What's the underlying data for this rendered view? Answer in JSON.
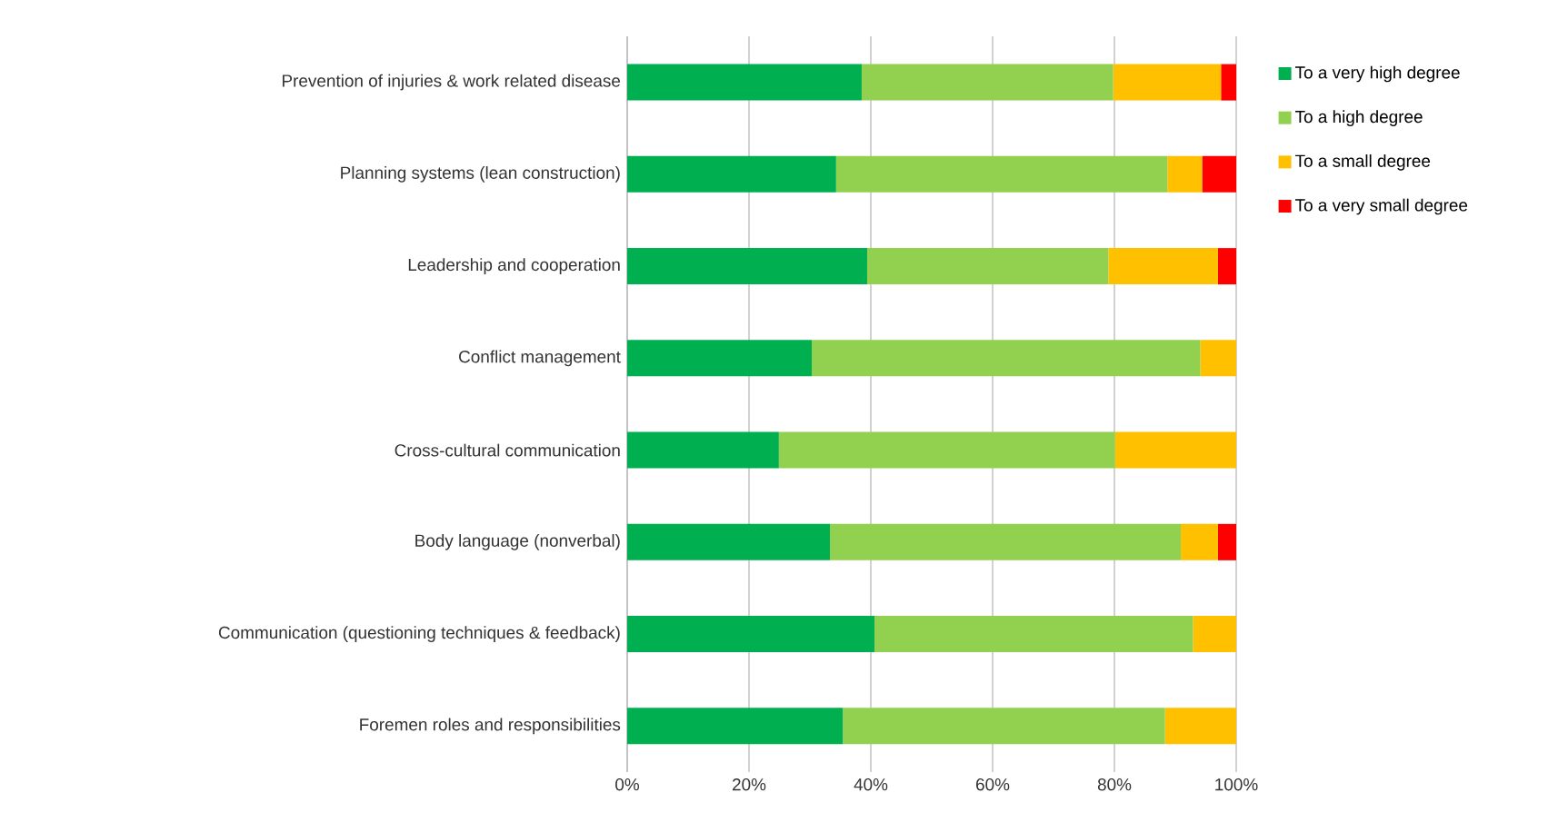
{
  "chart_data": {
    "type": "bar",
    "orientation": "horizontal",
    "stacked": true,
    "grid": "x",
    "legend": "right",
    "categories": [
      "Prevention of injuries & work related disease",
      "Planning systems (lean construction)",
      "Leadership and cooperation",
      "Conflict management",
      "Cross-cultural communication",
      "Body language (nonverbal)",
      "Communication (questioning techniques & feedback)",
      "Foremen roles and responsibilities"
    ],
    "xlim": [
      0,
      100
    ],
    "xticks": [
      {
        "value": 0,
        "label": "0%"
      },
      {
        "value": 20,
        "label": "20%"
      },
      {
        "value": 40,
        "label": "40%"
      },
      {
        "value": 60,
        "label": "60%"
      },
      {
        "value": 80,
        "label": "80%"
      },
      {
        "value": 100,
        "label": "100%"
      }
    ],
    "series": [
      {
        "name": "To a very high degree",
        "color": "#00b050",
        "values": [
          38.5,
          34.3,
          39.4,
          30.3,
          24.9,
          33.3,
          40.6,
          35.4
        ]
      },
      {
        "name": "To a high degree",
        "color": "#92d050",
        "values": [
          41.3,
          54.4,
          39.6,
          63.8,
          55.2,
          57.6,
          52.3,
          52.9
        ]
      },
      {
        "name": "To a small degree",
        "color": "#ffc000",
        "values": [
          17.7,
          5.7,
          18.0,
          5.9,
          19.9,
          6.1,
          7.1,
          11.7
        ]
      },
      {
        "name": "To a very small degree",
        "color": "#ff0000",
        "values": [
          2.5,
          5.6,
          3.0,
          0,
          0,
          3.0,
          0,
          0
        ]
      }
    ]
  }
}
